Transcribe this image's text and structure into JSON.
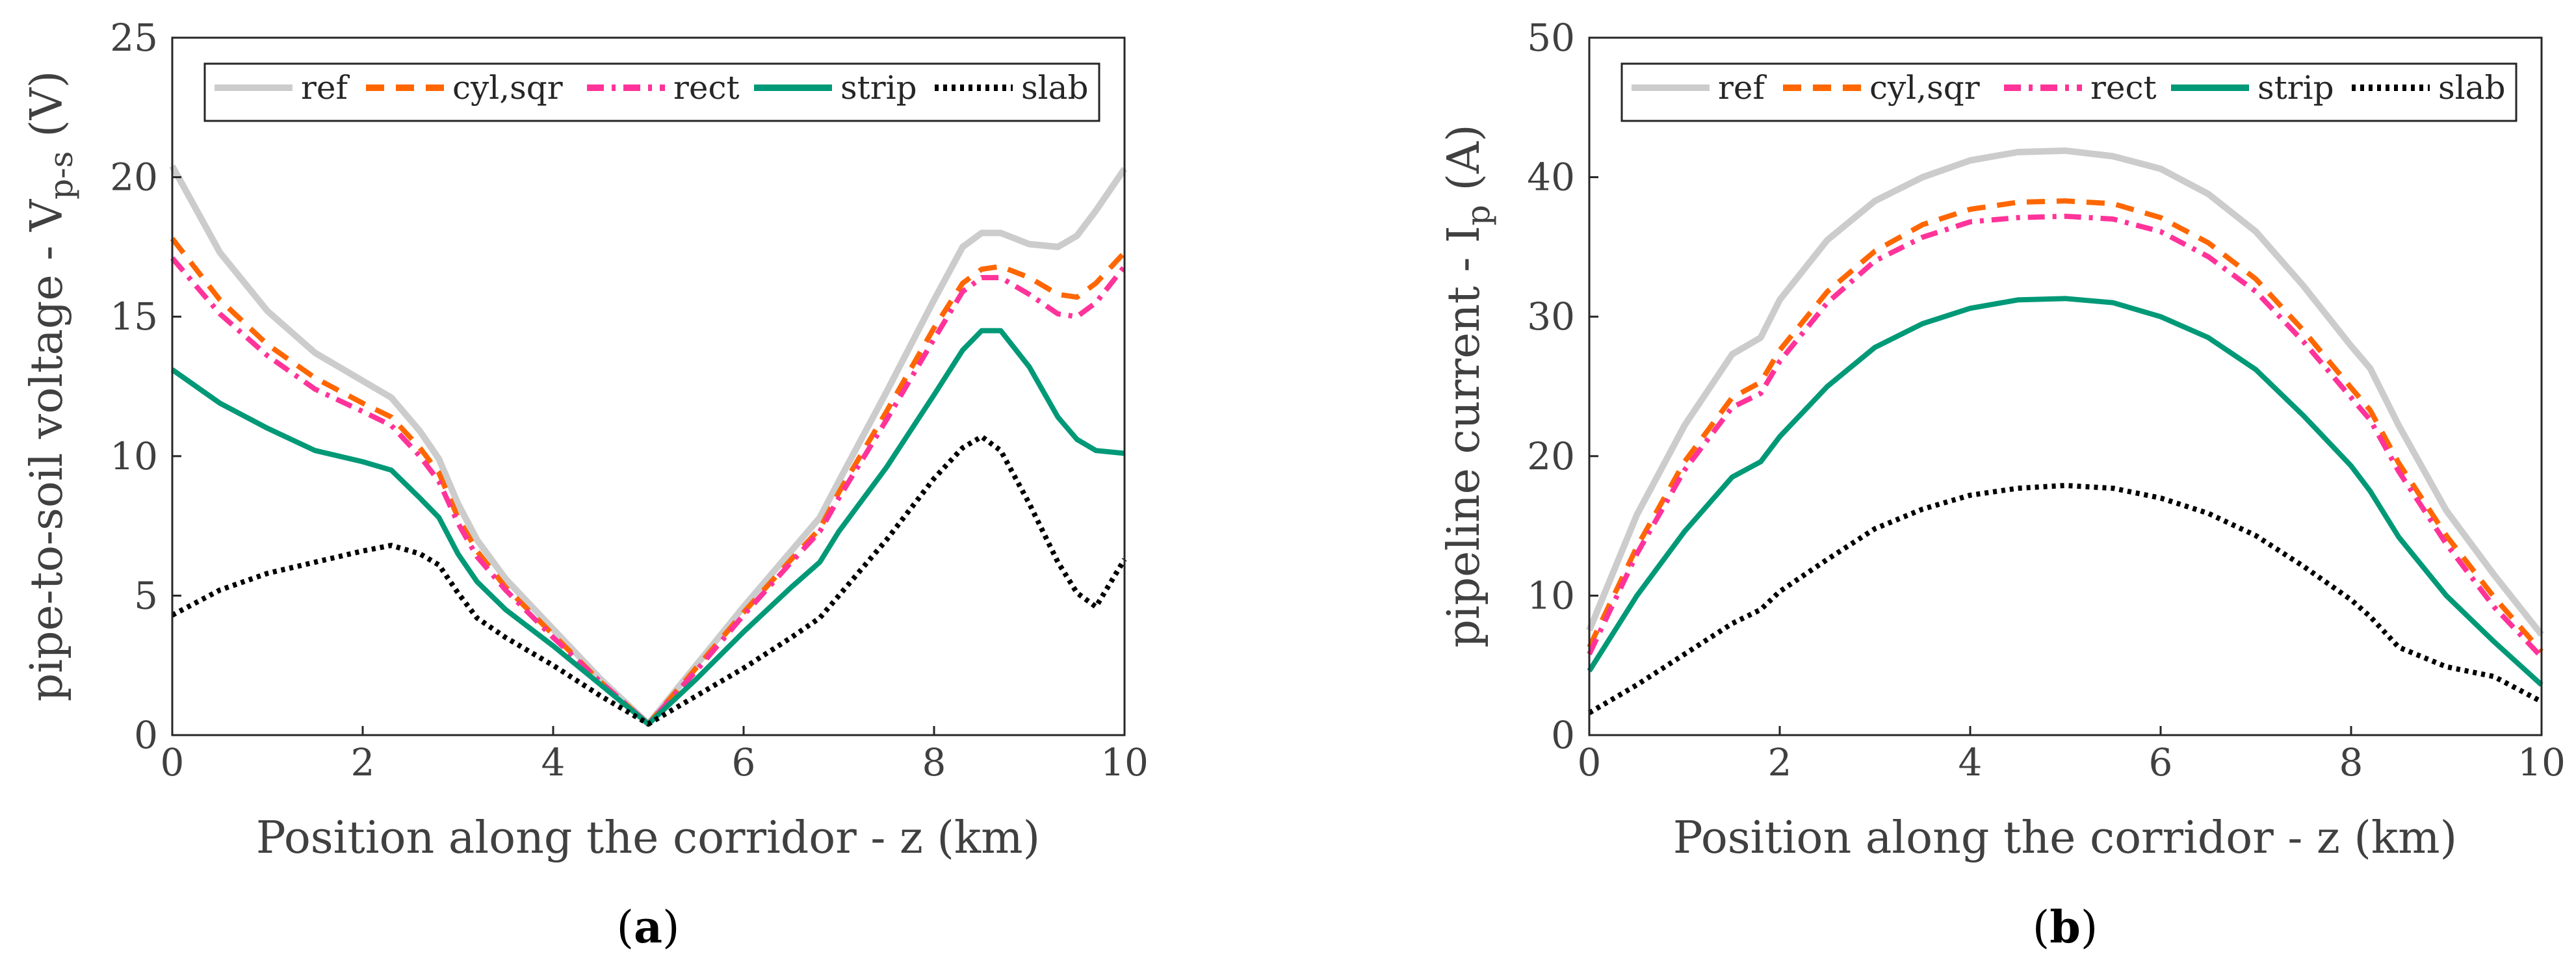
{
  "chart_data": [
    {
      "type": "line",
      "caption": {
        "open": "(",
        "letter": "a",
        "close": ")"
      },
      "xlabel": "Position along the corridor - z (km)",
      "ylabel": {
        "main": "pipe-to-soil voltage - V",
        "sub": "p-s",
        "unit": " (V)"
      },
      "xlim": [
        0,
        10
      ],
      "ylim": [
        0,
        25
      ],
      "xticks": [
        "0",
        "2",
        "4",
        "6",
        "8",
        "10"
      ],
      "yticks": [
        "0",
        "5",
        "10",
        "15",
        "20",
        "25"
      ],
      "grid": false,
      "legend_position": "top",
      "x": [
        0,
        0.5,
        1,
        1.5,
        2,
        2.3,
        2.6,
        2.8,
        3,
        3.2,
        3.5,
        4,
        4.5,
        5,
        5.5,
        6,
        6.5,
        6.8,
        7,
        7.5,
        8,
        8.3,
        8.5,
        8.7,
        9,
        9.3,
        9.5,
        9.7,
        10
      ],
      "series": [
        {
          "name": "ref",
          "color": "#cccccc",
          "dash": "solid",
          "values": [
            20.4,
            17.3,
            15.2,
            13.7,
            12.7,
            12.1,
            10.9,
            9.9,
            8.3,
            7.0,
            5.6,
            3.8,
            2.0,
            0.4,
            2.5,
            4.6,
            6.6,
            7.8,
            9.1,
            12.3,
            15.6,
            17.5,
            18.0,
            18.0,
            17.6,
            17.5,
            17.9,
            18.8,
            20.3
          ]
        },
        {
          "name": "cyl,sqr",
          "color": "#ff6600",
          "dash": "dashed",
          "values": [
            17.8,
            15.6,
            14.0,
            12.8,
            11.9,
            11.4,
            10.3,
            9.4,
            7.8,
            6.6,
            5.3,
            3.6,
            1.9,
            0.4,
            2.4,
            4.4,
            6.3,
            7.4,
            8.7,
            11.6,
            14.6,
            16.2,
            16.7,
            16.8,
            16.4,
            15.8,
            15.7,
            16.2,
            17.3
          ]
        },
        {
          "name": "rect",
          "color": "#ff3399",
          "dash": "dashdot",
          "values": [
            17.1,
            15.1,
            13.6,
            12.4,
            11.6,
            11.1,
            10.0,
            9.1,
            7.6,
            6.4,
            5.2,
            3.5,
            1.9,
            0.4,
            2.3,
            4.3,
            6.2,
            7.3,
            8.5,
            11.3,
            14.2,
            15.9,
            16.4,
            16.4,
            15.8,
            15.1,
            15.0,
            15.5,
            16.8
          ]
        },
        {
          "name": "strip",
          "color": "#009977",
          "dash": "solid",
          "values": [
            13.1,
            11.9,
            11.0,
            10.2,
            9.8,
            9.5,
            8.5,
            7.8,
            6.5,
            5.5,
            4.5,
            3.2,
            1.8,
            0.4,
            2.0,
            3.7,
            5.3,
            6.2,
            7.3,
            9.6,
            12.2,
            13.8,
            14.5,
            14.5,
            13.2,
            11.4,
            10.6,
            10.2,
            10.1
          ]
        },
        {
          "name": "slab",
          "color": "#000000",
          "dash": "dotted",
          "values": [
            4.3,
            5.2,
            5.8,
            6.2,
            6.6,
            6.8,
            6.5,
            6.1,
            5.1,
            4.2,
            3.5,
            2.5,
            1.4,
            0.4,
            1.4,
            2.4,
            3.5,
            4.2,
            5.0,
            7.0,
            9.2,
            10.3,
            10.7,
            10.2,
            8.3,
            6.2,
            5.1,
            4.6,
            6.3
          ]
        }
      ]
    },
    {
      "type": "line",
      "caption": {
        "open": "(",
        "letter": "b",
        "close": ")"
      },
      "xlabel": "Position along the corridor - z (km)",
      "ylabel": {
        "main": "pipeline current - I",
        "sub": "p",
        "unit": " (A)"
      },
      "xlim": [
        0,
        10
      ],
      "ylim": [
        0,
        50
      ],
      "xticks": [
        "0",
        "2",
        "4",
        "6",
        "8",
        "10"
      ],
      "yticks": [
        "0",
        "10",
        "20",
        "30",
        "40",
        "50"
      ],
      "grid": false,
      "legend_position": "top",
      "x": [
        0,
        0.5,
        1,
        1.5,
        1.8,
        2,
        2.5,
        3,
        3.5,
        4,
        4.5,
        5,
        5.5,
        6,
        6.5,
        7,
        7.5,
        8,
        8.2,
        8.5,
        9,
        9.5,
        10
      ],
      "series": [
        {
          "name": "ref",
          "color": "#cccccc",
          "dash": "solid",
          "values": [
            7.5,
            15.8,
            22.2,
            27.3,
            28.5,
            31.2,
            35.5,
            38.3,
            40.0,
            41.2,
            41.8,
            41.9,
            41.5,
            40.6,
            38.8,
            36.1,
            32.2,
            27.9,
            26.3,
            22.2,
            16.1,
            11.5,
            7.2
          ]
        },
        {
          "name": "cyl,sqr",
          "color": "#ff6600",
          "dash": "dashed",
          "values": [
            6.3,
            13.5,
            19.6,
            24.2,
            25.3,
            27.6,
            31.8,
            34.7,
            36.6,
            37.7,
            38.2,
            38.3,
            38.1,
            37.1,
            35.3,
            32.7,
            29.0,
            24.9,
            23.3,
            19.5,
            14.3,
            9.9,
            6.0
          ]
        },
        {
          "name": "rect",
          "color": "#ff3399",
          "dash": "dashdot",
          "values": [
            5.8,
            13.0,
            19.0,
            23.5,
            24.5,
            26.8,
            31.0,
            34.0,
            35.7,
            36.8,
            37.1,
            37.2,
            37.0,
            36.1,
            34.3,
            31.8,
            28.2,
            24.2,
            22.6,
            18.9,
            13.7,
            9.2,
            5.6
          ]
        },
        {
          "name": "strip",
          "color": "#009977",
          "dash": "solid",
          "values": [
            4.6,
            10.0,
            14.6,
            18.5,
            19.6,
            21.4,
            25.0,
            27.8,
            29.5,
            30.6,
            31.2,
            31.3,
            31.0,
            30.0,
            28.5,
            26.2,
            22.9,
            19.3,
            17.5,
            14.2,
            10.0,
            6.7,
            3.6
          ]
        },
        {
          "name": "slab",
          "color": "#000000",
          "dash": "dotted",
          "values": [
            1.6,
            3.6,
            5.8,
            8.0,
            9.0,
            10.3,
            12.6,
            14.8,
            16.2,
            17.2,
            17.7,
            17.9,
            17.7,
            17.0,
            15.9,
            14.3,
            12.1,
            9.7,
            8.5,
            6.3,
            4.9,
            4.2,
            2.4
          ]
        }
      ]
    }
  ]
}
